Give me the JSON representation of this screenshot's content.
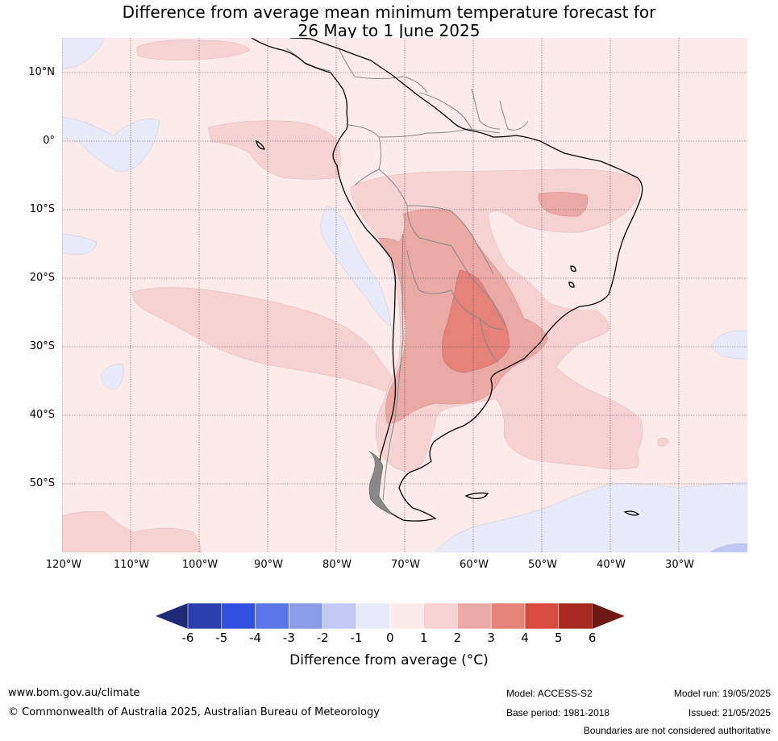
{
  "title_line1": "Difference from average mean minimum temperature forecast for",
  "title_line2": "26 May to 1 June 2025",
  "lat_labels": [
    "10°N",
    "0°",
    "10°S",
    "20°S",
    "30°S",
    "40°S",
    "50°S"
  ],
  "lon_labels": [
    "120°W",
    "110°W",
    "100°W",
    "90°W",
    "80°W",
    "70°W",
    "60°W",
    "50°W",
    "40°W",
    "30°W"
  ],
  "colorbar": {
    "ticks": [
      "-6",
      "-5",
      "-4",
      "-3",
      "-2",
      "-1",
      "0",
      "1",
      "2",
      "3",
      "4",
      "5",
      "6"
    ],
    "colors": [
      "#2a3fb0",
      "#3150e0",
      "#5b74e6",
      "#8a9bea",
      "#c1c8f3",
      "#e9ebfb",
      "#fcebea",
      "#f6d2d0",
      "#eba9a6",
      "#e5837b",
      "#d84a3e",
      "#a8291f"
    ],
    "under_color": "#1e2a78",
    "over_color": "#6e1a14",
    "label": "Difference from average (°C)"
  },
  "footer": {
    "website": "www.bom.gov.au/climate",
    "copyright": "© Commonwealth of Australia 2025, Australian Bureau of Meteorology",
    "model": "Model: ACCESS-S2",
    "base_period": "Base period: 1981-2018",
    "model_run": "Model run: 19/05/2025",
    "issued": "Issued: 21/05/2025",
    "disclaimer": "Boundaries are not considered authoritative"
  }
}
